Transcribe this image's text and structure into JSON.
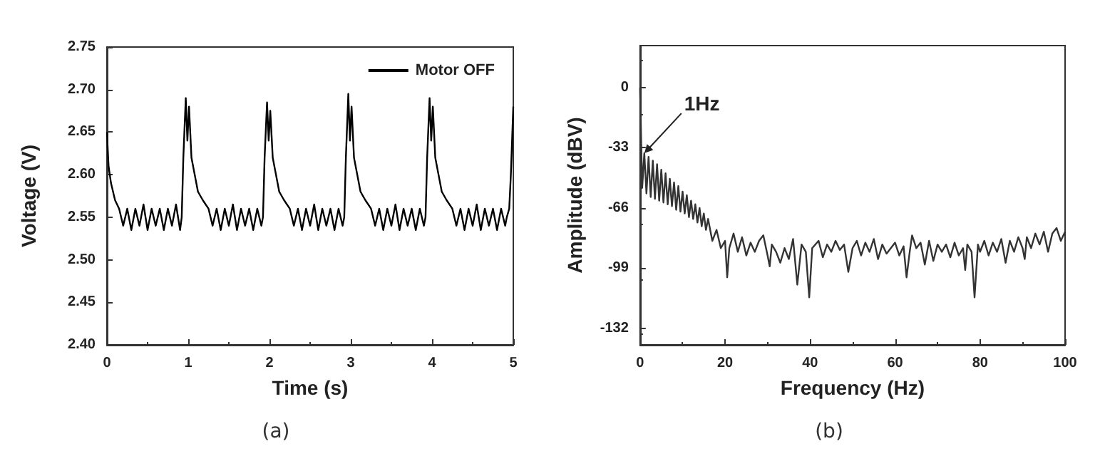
{
  "chart_data": [
    {
      "type": "line",
      "xlabel": "Time (s)",
      "ylabel": "Voltage (V)",
      "annotations": [
        "(a)"
      ],
      "xlim": [
        0,
        5
      ],
      "xticks": [
        0,
        1,
        2,
        3,
        4,
        5
      ],
      "ylim": [
        2.4,
        2.75
      ],
      "yticks": [
        {
          "value": 2.4,
          "label": "2.40"
        },
        {
          "value": 2.45,
          "label": "2.45"
        },
        {
          "value": 2.5,
          "label": "2.50"
        },
        {
          "value": 2.55,
          "label": "2.55"
        },
        {
          "value": 2.6,
          "label": "2.60"
        },
        {
          "value": 2.65,
          "label": "2.65"
        },
        {
          "value": 2.7,
          "label": "2.70"
        },
        {
          "value": 2.75,
          "label": "2.75"
        }
      ],
      "grid": false,
      "legend": "top right",
      "marker": "none",
      "line_style": "solid",
      "series": [
        {
          "name": "Motor OFF",
          "color": "#000000",
          "x": [
            0,
            0.02,
            0.05,
            0.1,
            0.15,
            0.2,
            0.25,
            0.3,
            0.35,
            0.4,
            0.45,
            0.5,
            0.55,
            0.6,
            0.65,
            0.7,
            0.75,
            0.8,
            0.85,
            0.9,
            0.92,
            0.94,
            0.97,
            0.99,
            1.01,
            1.04,
            1.08,
            1.12,
            1.18,
            1.25,
            1.3,
            1.35,
            1.4,
            1.45,
            1.5,
            1.55,
            1.6,
            1.65,
            1.7,
            1.75,
            1.8,
            1.85,
            1.9,
            1.92,
            1.94,
            1.97,
            1.99,
            2.01,
            2.04,
            2.08,
            2.12,
            2.18,
            2.25,
            2.3,
            2.35,
            2.4,
            2.45,
            2.5,
            2.55,
            2.6,
            2.65,
            2.7,
            2.75,
            2.8,
            2.85,
            2.9,
            2.92,
            2.94,
            2.97,
            2.99,
            3.01,
            3.04,
            3.08,
            3.12,
            3.18,
            3.25,
            3.3,
            3.35,
            3.4,
            3.45,
            3.5,
            3.55,
            3.6,
            3.65,
            3.7,
            3.75,
            3.8,
            3.85,
            3.9,
            3.92,
            3.94,
            3.97,
            3.99,
            4.01,
            4.04,
            4.08,
            4.12,
            4.18,
            4.25,
            4.3,
            4.35,
            4.4,
            4.45,
            4.5,
            4.55,
            4.6,
            4.65,
            4.7,
            4.75,
            4.8,
            4.85,
            4.9,
            4.92,
            4.95,
            4.97,
            5
          ],
          "values": [
            2.65,
            2.61,
            2.59,
            2.57,
            2.56,
            2.54,
            2.56,
            2.535,
            2.56,
            2.54,
            2.565,
            2.535,
            2.56,
            2.54,
            2.56,
            2.535,
            2.56,
            2.54,
            2.565,
            2.535,
            2.55,
            2.62,
            2.69,
            2.64,
            2.68,
            2.62,
            2.6,
            2.58,
            2.57,
            2.56,
            2.54,
            2.56,
            2.535,
            2.56,
            2.54,
            2.565,
            2.535,
            2.56,
            2.54,
            2.56,
            2.535,
            2.56,
            2.54,
            2.55,
            2.62,
            2.685,
            2.64,
            2.675,
            2.62,
            2.6,
            2.58,
            2.57,
            2.56,
            2.54,
            2.56,
            2.535,
            2.56,
            2.54,
            2.565,
            2.535,
            2.56,
            2.54,
            2.56,
            2.535,
            2.56,
            2.54,
            2.55,
            2.62,
            2.695,
            2.64,
            2.68,
            2.62,
            2.6,
            2.58,
            2.57,
            2.56,
            2.54,
            2.56,
            2.535,
            2.56,
            2.54,
            2.565,
            2.535,
            2.56,
            2.54,
            2.56,
            2.535,
            2.56,
            2.54,
            2.55,
            2.62,
            2.69,
            2.64,
            2.68,
            2.62,
            2.6,
            2.58,
            2.57,
            2.56,
            2.54,
            2.56,
            2.535,
            2.56,
            2.54,
            2.565,
            2.535,
            2.56,
            2.54,
            2.56,
            2.535,
            2.56,
            2.54,
            2.55,
            2.56,
            2.6,
            2.68
          ]
        }
      ]
    },
    {
      "type": "line",
      "xlabel": "Frequency (Hz)",
      "ylabel": "Amplitude (dBV)",
      "annotations": [
        {
          "text": "1Hz",
          "x": 1,
          "y": -36
        },
        "(b)"
      ],
      "xlim": [
        0,
        100
      ],
      "xticks": [
        0,
        20,
        40,
        60,
        80,
        100
      ],
      "ylim": [
        -141,
        23
      ],
      "yticks": [
        -132,
        -99,
        -66,
        -33,
        0
      ],
      "grid": false,
      "legend": false,
      "marker": "none",
      "line_style": "solid",
      "series": [
        {
          "color": "#333333",
          "x": [
            0,
            0.5,
            1,
            1.5,
            2,
            2.5,
            3,
            3.5,
            4,
            4.5,
            5,
            5.5,
            6,
            6.5,
            7,
            7.5,
            8,
            8.5,
            9,
            9.5,
            10,
            10.5,
            11,
            11.5,
            12,
            12.5,
            13,
            13.5,
            14,
            14.5,
            15,
            15.5,
            16,
            17,
            18,
            19,
            20,
            20.5,
            21,
            22,
            23,
            24,
            25,
            26,
            27,
            28,
            29,
            30,
            30.5,
            31,
            32,
            33,
            34,
            35,
            36,
            37,
            38,
            39,
            39.8,
            40.5,
            42,
            43,
            44,
            45,
            46,
            47,
            48,
            49,
            50,
            51,
            52,
            53,
            54,
            55,
            56,
            57,
            58,
            60,
            61,
            62,
            62.7,
            63.5,
            64,
            65,
            66,
            67,
            68,
            69,
            70,
            71,
            72,
            73,
            74,
            75,
            76,
            76.5,
            77,
            78,
            78.7,
            79.5,
            80,
            81,
            82,
            83,
            84,
            85,
            86,
            87,
            88,
            89,
            90,
            90.5,
            91,
            92,
            93,
            94,
            95,
            96,
            97,
            98,
            99,
            100
          ],
          "values": [
            0,
            -55,
            -36,
            -58,
            -38,
            -60,
            -40,
            -61,
            -42,
            -62,
            -45,
            -63,
            -47,
            -64,
            -50,
            -65,
            -52,
            -67,
            -54,
            -68,
            -57,
            -69,
            -59,
            -71,
            -62,
            -72,
            -64,
            -74,
            -66,
            -76,
            -69,
            -78,
            -72,
            -84,
            -78,
            -88,
            -84,
            -104,
            -88,
            -80,
            -90,
            -82,
            -92,
            -85,
            -90,
            -84,
            -81,
            -92,
            -98,
            -86,
            -90,
            -96,
            -88,
            -94,
            -83,
            -108,
            -86,
            -90,
            -115,
            -88,
            -84,
            -93,
            -86,
            -90,
            -84,
            -89,
            -86,
            -101,
            -88,
            -84,
            -92,
            -85,
            -90,
            -83,
            -94,
            -86,
            -91,
            -85,
            -92,
            -87,
            -104,
            -89,
            -81,
            -88,
            -85,
            -97,
            -84,
            -95,
            -86,
            -90,
            -86,
            -93,
            -85,
            -92,
            -88,
            -100,
            -86,
            -90,
            -115,
            -86,
            -90,
            -84,
            -92,
            -85,
            -90,
            -83,
            -96,
            -84,
            -90,
            -82,
            -88,
            -94,
            -82,
            -88,
            -80,
            -86,
            -79,
            -90,
            -80,
            -77,
            -84,
            -79
          ]
        }
      ]
    }
  ]
}
